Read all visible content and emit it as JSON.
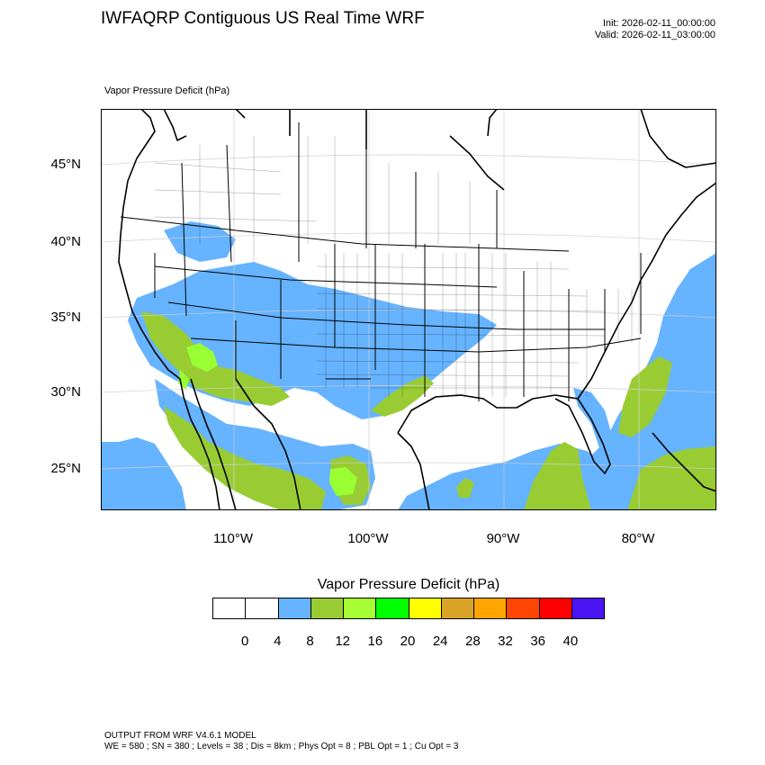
{
  "title": "IWFAQRP Contiguous US Real Time WRF",
  "init": "Init: 2026-02-11_00:00:00",
  "valid": "Valid: 2026-02-11_03:00:00",
  "field_label": "Vapor Pressure Deficit   (hPa)",
  "map": {
    "lat_labels": [
      "45°N",
      "40°N",
      "35°N",
      "30°N",
      "25°N"
    ],
    "lon_labels": [
      "110°W",
      "100°W",
      "90°W",
      "80°W"
    ],
    "colors": {
      "ocean_low": "#66b3ff",
      "land_8_12": "#99cc33",
      "land_12_16": "#99ff33",
      "land_16_20": "#00ff33"
    }
  },
  "legend": {
    "title": "Vapor Pressure Deficit  (hPa)",
    "colors": [
      "#ffffff",
      "#ffffff",
      "#66b3ff",
      "#99cc33",
      "#a5ff33",
      "#00ff00",
      "#ffff00",
      "#d9a326",
      "#ffa500",
      "#ff4500",
      "#ff0000",
      "#4a13f2"
    ],
    "labels": [
      "0",
      "4",
      "8",
      "12",
      "16",
      "20",
      "24",
      "28",
      "32",
      "36",
      "40"
    ]
  },
  "footer": {
    "line1": "OUTPUT FROM WRF V4.6.1 MODEL",
    "line2": "WE = 580 ; SN = 380 ; Levels = 38 ; Dis = 8km ; Phys Opt = 8 ; PBL Opt = 1 ; Cu Opt = 3"
  }
}
